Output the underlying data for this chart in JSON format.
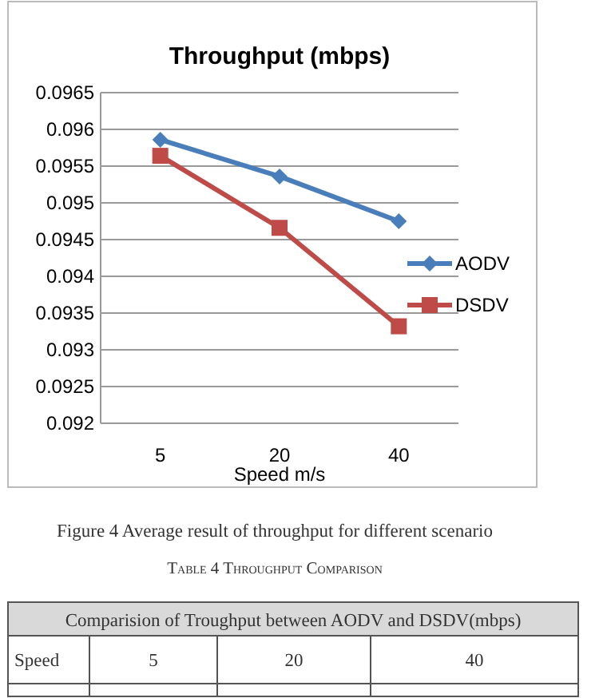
{
  "chart_data": {
    "type": "line",
    "title": "Throughput (mbps)",
    "xlabel": "Speed m/s",
    "categories": [
      "5",
      "20",
      "40"
    ],
    "series": [
      {
        "name": "AODV",
        "color": "#4a7ebb",
        "marker": "diamond",
        "values": [
          0.09586,
          0.09536,
          0.09475
        ]
      },
      {
        "name": "DSDV",
        "color": "#be4b48",
        "marker": "square",
        "values": [
          0.09564,
          0.09466,
          0.09332
        ]
      }
    ],
    "ylim": [
      0.092,
      0.0965
    ],
    "yticks": [
      {
        "value": 0.092,
        "label": "0.092"
      },
      {
        "value": 0.0925,
        "label": "0.0925"
      },
      {
        "value": 0.093,
        "label": "0.093"
      },
      {
        "value": 0.0935,
        "label": "0.0935"
      },
      {
        "value": 0.094,
        "label": "0.094"
      },
      {
        "value": 0.0945,
        "label": "0.0945"
      },
      {
        "value": 0.095,
        "label": "0.095"
      },
      {
        "value": 0.0955,
        "label": "0.0955"
      },
      {
        "value": 0.096,
        "label": "0.096"
      },
      {
        "value": 0.0965,
        "label": "0.0965"
      }
    ],
    "grid": "y",
    "legend": "right",
    "line_style": "solid",
    "annotations": [
      "Figure 4  Average result of throughput for different scenario",
      "Table 4 Throughput Comparison",
      "Comparision of Troughput between AODV and DSDV(mbps)",
      "Speed",
      "5",
      "20",
      "40"
    ]
  }
}
